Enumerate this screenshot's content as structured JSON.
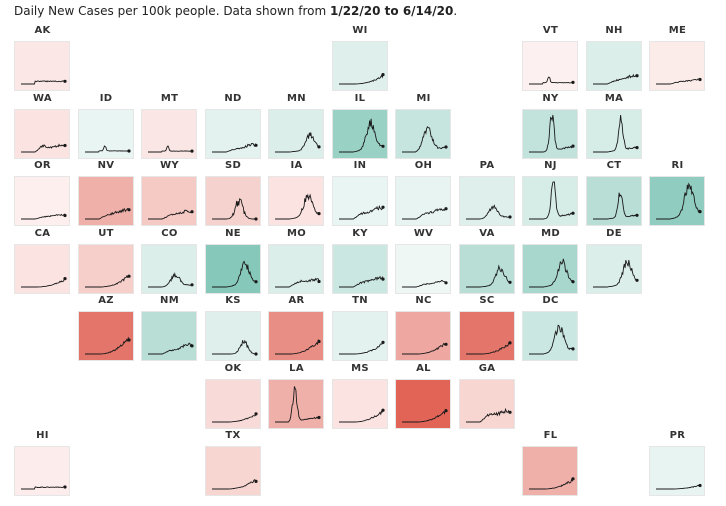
{
  "caption": {
    "prefix": "Daily New Cases per 100k people. Data shown from ",
    "start_date": "1/22/20",
    "mid": " to ",
    "end_date": "6/14/20",
    "suffix": "."
  },
  "colors": {
    "line": "#1a1a1a",
    "increasing": "#dc4a3c",
    "decreasing": "#2e9f86",
    "border": "#e6e6e6"
  },
  "chart_data": {
    "type": "small-multiples-line",
    "title": "Daily New Cases per 100k people. Data shown from 1/22/20 to 6/14/20.",
    "x_range": [
      "1/22/20",
      "6/14/20"
    ],
    "trend_scale": "tile fill: red = rising recent trend, green = falling recent trend, strength in [-1, 1]",
    "states": [
      {
        "state": "AK",
        "row": 0,
        "col": 0,
        "trend": 0.07,
        "peak": 0.12,
        "peak_at": 0.5,
        "shape": "flat"
      },
      {
        "state": "WI",
        "row": 0,
        "col": 5,
        "trend": -0.1,
        "peak": 0.22,
        "peak_at": 0.92,
        "shape": "rising"
      },
      {
        "state": "VT",
        "row": 0,
        "col": 8,
        "trend": 0.02,
        "peak": 0.18,
        "peak_at": 0.45,
        "shape": "early"
      },
      {
        "state": "NH",
        "row": 0,
        "col": 9,
        "trend": -0.12,
        "peak": 0.22,
        "peak_at": 0.75,
        "shape": "plateau"
      },
      {
        "state": "ME",
        "row": 0,
        "col": 10,
        "trend": 0.05,
        "peak": 0.12,
        "peak_at": 0.7,
        "shape": "plateau"
      },
      {
        "state": "WA",
        "row": 1,
        "col": 0,
        "trend": 0.1,
        "peak": 0.18,
        "peak_at": 0.5,
        "shape": "plateau"
      },
      {
        "state": "ID",
        "row": 1,
        "col": 1,
        "trend": -0.05,
        "peak": 0.15,
        "peak_at": 0.45,
        "shape": "early"
      },
      {
        "state": "MT",
        "row": 1,
        "col": 2,
        "trend": 0.08,
        "peak": 0.12,
        "peak_at": 0.45,
        "shape": "early"
      },
      {
        "state": "ND",
        "row": 1,
        "col": 3,
        "trend": -0.08,
        "peak": 0.2,
        "peak_at": 0.8,
        "shape": "plateau"
      },
      {
        "state": "MN",
        "row": 1,
        "col": 4,
        "trend": -0.12,
        "peak": 0.4,
        "peak_at": 0.8,
        "shape": "peak"
      },
      {
        "state": "IL",
        "row": 1,
        "col": 5,
        "trend": -0.45,
        "peak": 0.7,
        "peak_at": 0.72,
        "shape": "peak"
      },
      {
        "state": "MI",
        "row": 1,
        "col": 6,
        "trend": -0.22,
        "peak": 0.6,
        "peak_at": 0.58,
        "shape": "peak"
      },
      {
        "state": "NY",
        "row": 1,
        "col": 8,
        "trend": -0.25,
        "peak": 0.98,
        "peak_at": 0.52,
        "shape": "spike"
      },
      {
        "state": "MA",
        "row": 1,
        "col": 9,
        "trend": -0.15,
        "peak": 0.85,
        "peak_at": 0.63,
        "shape": "spike"
      },
      {
        "state": "OR",
        "row": 2,
        "col": 0,
        "trend": 0.03,
        "peak": 0.12,
        "peak_at": 0.7,
        "shape": "plateau"
      },
      {
        "state": "NV",
        "row": 2,
        "col": 1,
        "trend": 0.4,
        "peak": 0.25,
        "peak_at": 0.7,
        "shape": "plateau"
      },
      {
        "state": "WY",
        "row": 2,
        "col": 2,
        "trend": 0.25,
        "peak": 0.22,
        "peak_at": 0.7,
        "shape": "plateau"
      },
      {
        "state": "SD",
        "row": 2,
        "col": 3,
        "trend": 0.2,
        "peak": 0.55,
        "peak_at": 0.62,
        "shape": "spiky"
      },
      {
        "state": "IA",
        "row": 2,
        "col": 4,
        "trend": 0.1,
        "peak": 0.55,
        "peak_at": 0.75,
        "shape": "peak"
      },
      {
        "state": "IN",
        "row": 2,
        "col": 5,
        "trend": -0.05,
        "peak": 0.3,
        "peak_at": 0.7,
        "shape": "plateau"
      },
      {
        "state": "OH",
        "row": 2,
        "col": 6,
        "trend": -0.06,
        "peak": 0.28,
        "peak_at": 0.7,
        "shape": "plateau"
      },
      {
        "state": "PA",
        "row": 2,
        "col": 7,
        "trend": -0.1,
        "peak": 0.3,
        "peak_at": 0.62,
        "shape": "peak"
      },
      {
        "state": "NJ",
        "row": 2,
        "col": 8,
        "trend": -0.15,
        "peak": 0.95,
        "peak_at": 0.55,
        "shape": "spike"
      },
      {
        "state": "CT",
        "row": 2,
        "col": 9,
        "trend": -0.3,
        "peak": 0.7,
        "peak_at": 0.62,
        "shape": "spike"
      },
      {
        "state": "RI",
        "row": 2,
        "col": 10,
        "trend": -0.5,
        "peak": 0.82,
        "peak_at": 0.75,
        "shape": "peak"
      },
      {
        "state": "CA",
        "row": 3,
        "col": 0,
        "trend": 0.1,
        "peak": 0.2,
        "peak_at": 0.95,
        "shape": "rising"
      },
      {
        "state": "UT",
        "row": 3,
        "col": 1,
        "trend": 0.22,
        "peak": 0.3,
        "peak_at": 0.95,
        "shape": "rising"
      },
      {
        "state": "CO",
        "row": 3,
        "col": 2,
        "trend": -0.12,
        "peak": 0.3,
        "peak_at": 0.62,
        "shape": "peak"
      },
      {
        "state": "NE",
        "row": 3,
        "col": 3,
        "trend": -0.55,
        "peak": 0.55,
        "peak_at": 0.75,
        "shape": "peak"
      },
      {
        "state": "MO",
        "row": 3,
        "col": 4,
        "trend": -0.12,
        "peak": 0.2,
        "peak_at": 0.6,
        "shape": "plateau"
      },
      {
        "state": "KY",
        "row": 3,
        "col": 5,
        "trend": -0.2,
        "peak": 0.25,
        "peak_at": 0.7,
        "shape": "plateau"
      },
      {
        "state": "WV",
        "row": 3,
        "col": 6,
        "trend": -0.02,
        "peak": 0.15,
        "peak_at": 0.7,
        "shape": "plateau"
      },
      {
        "state": "VA",
        "row": 3,
        "col": 7,
        "trend": -0.3,
        "peak": 0.45,
        "peak_at": 0.78,
        "shape": "peak"
      },
      {
        "state": "MD",
        "row": 3,
        "col": 8,
        "trend": -0.38,
        "peak": 0.6,
        "peak_at": 0.75,
        "shape": "peak"
      },
      {
        "state": "DE",
        "row": 3,
        "col": 9,
        "trend": -0.12,
        "peak": 0.6,
        "peak_at": 0.78,
        "shape": "peak"
      },
      {
        "state": "AZ",
        "row": 4,
        "col": 1,
        "trend": 0.75,
        "peak": 0.45,
        "peak_at": 0.97,
        "shape": "rising"
      },
      {
        "state": "NM",
        "row": 4,
        "col": 2,
        "trend": -0.3,
        "peak": 0.25,
        "peak_at": 0.8,
        "shape": "plateau"
      },
      {
        "state": "KS",
        "row": 4,
        "col": 3,
        "trend": -0.1,
        "peak": 0.35,
        "peak_at": 0.72,
        "shape": "spiky"
      },
      {
        "state": "AR",
        "row": 4,
        "col": 4,
        "trend": 0.6,
        "peak": 0.35,
        "peak_at": 0.95,
        "shape": "rising"
      },
      {
        "state": "TN",
        "row": 4,
        "col": 5,
        "trend": -0.08,
        "peak": 0.28,
        "peak_at": 0.85,
        "shape": "rising"
      },
      {
        "state": "NC",
        "row": 4,
        "col": 6,
        "trend": 0.45,
        "peak": 0.3,
        "peak_at": 0.95,
        "shape": "rising"
      },
      {
        "state": "SC",
        "row": 4,
        "col": 7,
        "trend": 0.75,
        "peak": 0.3,
        "peak_at": 0.97,
        "shape": "rising"
      },
      {
        "state": "DC",
        "row": 4,
        "col": 8,
        "trend": -0.2,
        "peak": 0.68,
        "peak_at": 0.68,
        "shape": "peak"
      },
      {
        "state": "OK",
        "row": 5,
        "col": 3,
        "trend": 0.15,
        "peak": 0.2,
        "peak_at": 0.95,
        "shape": "rising"
      },
      {
        "state": "LA",
        "row": 5,
        "col": 4,
        "trend": 0.4,
        "peak": 0.85,
        "peak_at": 0.45,
        "shape": "spike"
      },
      {
        "state": "MS",
        "row": 5,
        "col": 5,
        "trend": 0.1,
        "peak": 0.3,
        "peak_at": 0.9,
        "shape": "rising"
      },
      {
        "state": "AL",
        "row": 5,
        "col": 6,
        "trend": 0.85,
        "peak": 0.3,
        "peak_at": 0.95,
        "shape": "rising"
      },
      {
        "state": "GA",
        "row": 5,
        "col": 7,
        "trend": 0.18,
        "peak": 0.3,
        "peak_at": 0.6,
        "shape": "plateau"
      },
      {
        "state": "HI",
        "row": 6,
        "col": 0,
        "trend": 0.04,
        "peak": 0.08,
        "peak_at": 0.5,
        "shape": "flat"
      },
      {
        "state": "TX",
        "row": 6,
        "col": 3,
        "trend": 0.18,
        "peak": 0.25,
        "peak_at": 0.95,
        "shape": "rising"
      },
      {
        "state": "FL",
        "row": 6,
        "col": 8,
        "trend": 0.4,
        "peak": 0.25,
        "peak_at": 0.95,
        "shape": "rising"
      },
      {
        "state": "PR",
        "row": 6,
        "col": 10,
        "trend": -0.06,
        "peak": 0.1,
        "peak_at": 0.95,
        "shape": "rising"
      }
    ]
  }
}
